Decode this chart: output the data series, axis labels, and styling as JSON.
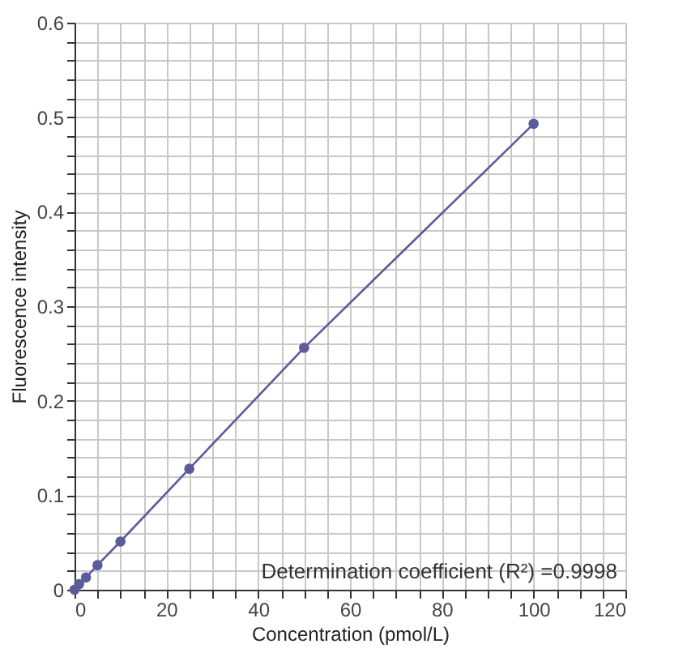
{
  "chart_data": {
    "type": "line",
    "xlabel": "Concentration (pmol/L)",
    "ylabel": "Fluorescence intensity",
    "x": [
      0,
      1,
      2.5,
      5,
      10,
      25,
      50,
      100
    ],
    "series": [
      {
        "color": "#5b5b9a",
        "values": [
          0,
          0.006,
          0.013,
          0.026,
          0.051,
          0.128,
          0.256,
          0.493
        ]
      }
    ],
    "marker": "circle",
    "line_style": "solid",
    "grid": true,
    "xlim": [
      0,
      120
    ],
    "xticks": [
      0,
      {
        "value": 5,
        "label": null
      },
      {
        "value": 10,
        "label": null
      },
      {
        "value": 15,
        "label": null
      },
      20,
      {
        "value": 25,
        "label": null
      },
      {
        "value": 30,
        "label": null
      },
      {
        "value": 35,
        "label": null
      },
      40,
      {
        "value": 45,
        "label": null
      },
      {
        "value": 50,
        "label": null
      },
      {
        "value": 55,
        "label": null
      },
      60,
      {
        "value": 65,
        "label": null
      },
      {
        "value": 70,
        "label": null
      },
      {
        "value": 75,
        "label": null
      },
      80,
      {
        "value": 85,
        "label": null
      },
      {
        "value": 90,
        "label": null
      },
      {
        "value": 95,
        "label": null
      },
      100,
      {
        "value": 105,
        "label": null
      },
      {
        "value": 110,
        "label": null
      },
      {
        "value": 115,
        "label": null
      },
      120
    ],
    "ylim": [
      0,
      0.6
    ],
    "yticks": [
      0,
      {
        "value": 0.02,
        "label": null
      },
      {
        "value": 0.04,
        "label": null
      },
      {
        "value": 0.06,
        "label": null
      },
      {
        "value": 0.08,
        "label": null
      },
      0.1,
      {
        "value": 0.12,
        "label": null
      },
      {
        "value": 0.14,
        "label": null
      },
      {
        "value": 0.16,
        "label": null
      },
      {
        "value": 0.18,
        "label": null
      },
      0.2,
      {
        "value": 0.22,
        "label": null
      },
      {
        "value": 0.24,
        "label": null
      },
      {
        "value": 0.26,
        "label": null
      },
      {
        "value": 0.28,
        "label": null
      },
      0.3,
      {
        "value": 0.32,
        "label": null
      },
      {
        "value": 0.34,
        "label": null
      },
      {
        "value": 0.36,
        "label": null
      },
      {
        "value": 0.38,
        "label": null
      },
      0.4,
      {
        "value": 0.42,
        "label": null
      },
      {
        "value": 0.44,
        "label": null
      },
      {
        "value": 0.46,
        "label": null
      },
      {
        "value": 0.48,
        "label": null
      },
      0.5,
      {
        "value": 0.52,
        "label": null
      },
      {
        "value": 0.54,
        "label": null
      },
      {
        "value": 0.56,
        "label": null
      },
      {
        "value": 0.58,
        "label": null
      },
      0.6
    ],
    "annotations": [
      "Determination coefficient (R²) =0.9998"
    ]
  }
}
